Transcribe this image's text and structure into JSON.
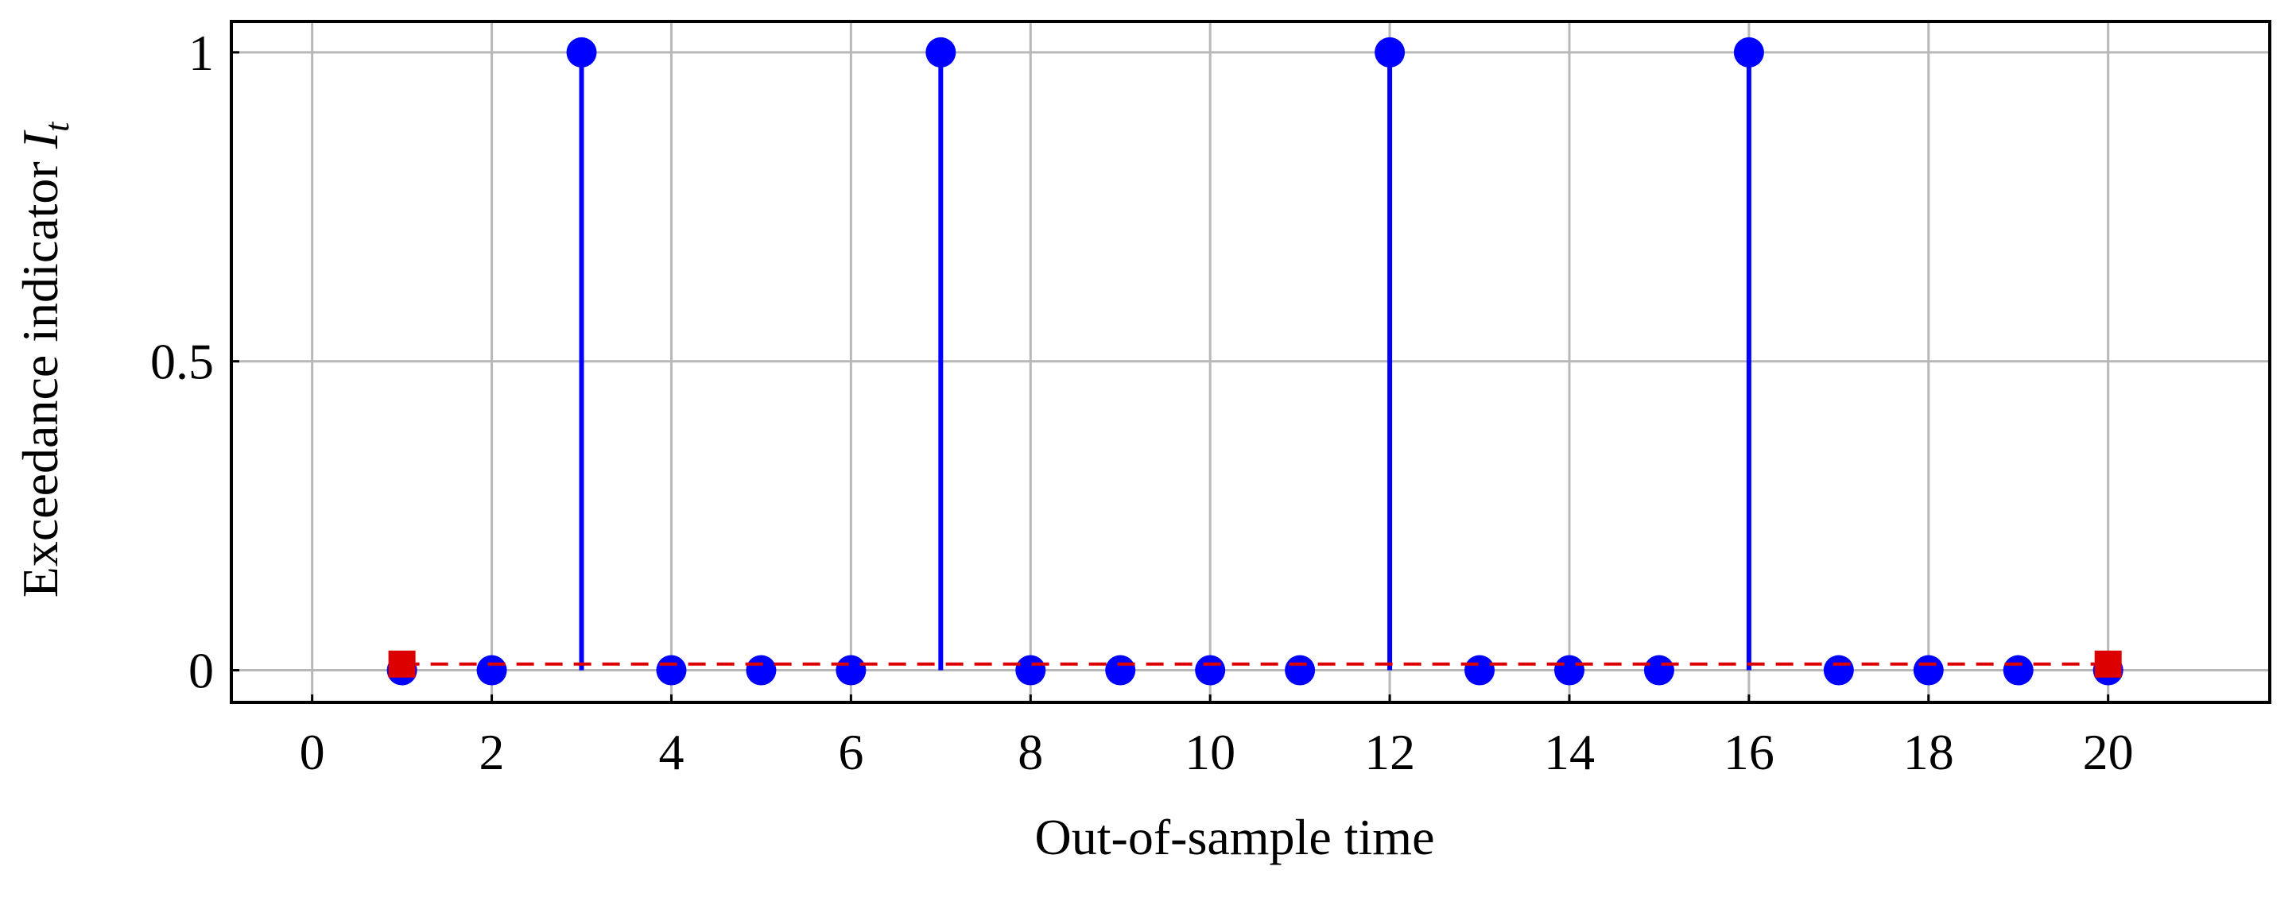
{
  "chart_data": {
    "type": "stem",
    "xlabel": "Out-of-sample time",
    "ylabel": "Exceedance indicator",
    "ylabel_symbol": "I",
    "ylabel_subscript": "t",
    "xlim": [
      -0.9,
      21.8
    ],
    "ylim": [
      -0.052,
      1.05
    ],
    "xticks": [
      0,
      2,
      4,
      6,
      8,
      10,
      12,
      14,
      16,
      18,
      20
    ],
    "yticks": [
      0,
      0.5,
      1
    ],
    "grid": true,
    "series": [
      {
        "color": "#0000ff",
        "style": "stem",
        "x": [
          1,
          2,
          3,
          4,
          5,
          6,
          7,
          8,
          9,
          10,
          11,
          12,
          13,
          14,
          15,
          16,
          17,
          18,
          19,
          20
        ],
        "values": [
          0,
          0,
          1,
          0,
          0,
          0,
          1,
          0,
          0,
          0,
          0,
          1,
          0,
          0,
          0,
          1,
          0,
          0,
          0,
          0
        ]
      },
      {
        "color": "#dd0000",
        "style": "dashed-line-square",
        "x": [
          1,
          20
        ],
        "values": [
          0.01,
          0.01
        ]
      }
    ]
  }
}
